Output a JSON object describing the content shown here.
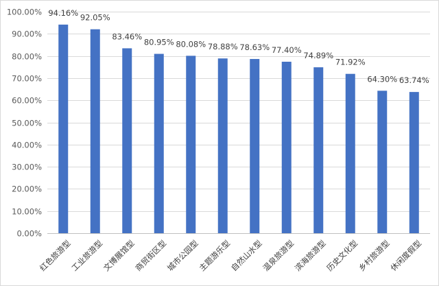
{
  "chart_data": {
    "type": "bar",
    "categories": [
      "红色旅游型",
      "工业旅游型",
      "文博展馆型",
      "商贸街区型",
      "城市公园型",
      "主题游乐型",
      "自然山水型",
      "温泉旅游型",
      "滨海旅游型",
      "历史文化型",
      "乡村旅游型",
      "休闲度假型"
    ],
    "values": [
      94.16,
      92.05,
      83.46,
      80.95,
      80.08,
      78.88,
      78.63,
      77.4,
      74.89,
      71.92,
      64.3,
      63.74
    ],
    "value_labels": [
      "94.16%",
      "92.05%",
      "83.46%",
      "80.95%",
      "80.08%",
      "78.88%",
      "78.63%",
      "77.40%",
      "74.89%",
      "71.92%",
      "64.30%",
      "63.74%"
    ],
    "y_ticks": [
      0,
      10,
      20,
      30,
      40,
      50,
      60,
      70,
      80,
      90,
      100
    ],
    "y_tick_labels": [
      "0.00%",
      "10.00%",
      "20.00%",
      "30.00%",
      "40.00%",
      "50.00%",
      "60.00%",
      "70.00%",
      "80.00%",
      "90.00%",
      "100.00%"
    ],
    "ylim": [
      0,
      100
    ],
    "grid": true,
    "legend": "none",
    "bar_color": "#4472c4"
  }
}
